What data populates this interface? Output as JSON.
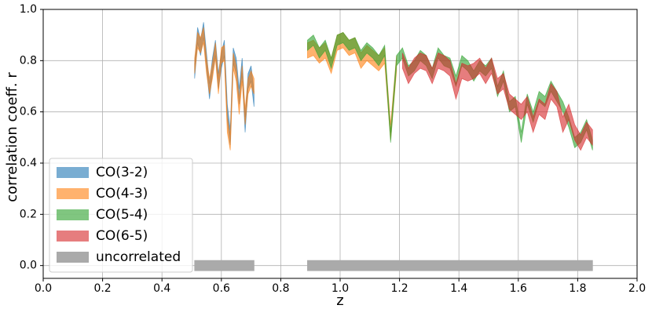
{
  "chart_data": {
    "type": "band",
    "xlabel": "z",
    "ylabel": "correlation coeff. r",
    "xlim": [
      0.0,
      2.0
    ],
    "xticks": [
      {
        "value": 0,
        "label": "0.0"
      },
      0.2,
      0.4,
      0.6,
      0.8,
      {
        "value": 1,
        "label": "1.0"
      },
      1.2,
      1.4,
      1.6,
      1.8,
      {
        "value": 2,
        "label": "2.0"
      }
    ],
    "ylim": [
      -0.05,
      1.0
    ],
    "yticks": [
      {
        "value": 0,
        "label": "0.0"
      },
      0.2,
      0.4,
      0.6,
      0.8,
      {
        "value": 1,
        "label": "1.0"
      }
    ],
    "grid": true,
    "legend": "lower left",
    "series": [
      {
        "name": "CO(3-2)",
        "color": "#1f77b4",
        "opacity": 0.6,
        "x": [
          0.51,
          0.52,
          0.53,
          0.54,
          0.55,
          0.56,
          0.57,
          0.58,
          0.59,
          0.6,
          0.61,
          0.62,
          0.63,
          0.64,
          0.65,
          0.66,
          0.67,
          0.68,
          0.69,
          0.7,
          0.71
        ],
        "lower": [
          0.73,
          0.87,
          0.82,
          0.89,
          0.77,
          0.65,
          0.75,
          0.82,
          0.69,
          0.77,
          0.82,
          0.57,
          0.47,
          0.79,
          0.75,
          0.63,
          0.75,
          0.52,
          0.69,
          0.72,
          0.62
        ],
        "upper": [
          0.79,
          0.93,
          0.88,
          0.95,
          0.83,
          0.71,
          0.81,
          0.88,
          0.75,
          0.83,
          0.88,
          0.63,
          0.53,
          0.85,
          0.81,
          0.69,
          0.81,
          0.58,
          0.75,
          0.78,
          0.68
        ]
      },
      {
        "name": "CO(4-3)",
        "color": "#ff7f0e",
        "opacity": 0.6,
        "x": [
          0.51,
          0.52,
          0.53,
          0.54,
          0.55,
          0.56,
          0.57,
          0.58,
          0.59,
          0.6,
          0.61,
          0.62,
          0.63,
          0.64,
          0.65,
          0.66,
          0.67,
          0.68,
          0.69,
          0.7,
          0.71,
          0.8,
          0.89,
          0.91,
          0.93,
          0.95,
          0.97,
          0.99,
          1.01,
          1.03,
          1.05,
          1.07,
          1.09,
          1.11,
          1.13,
          1.15,
          1.17,
          1.19
        ],
        "lower": [
          0.75,
          0.85,
          0.83,
          0.87,
          0.75,
          0.67,
          0.73,
          0.81,
          0.67,
          0.79,
          0.8,
          0.52,
          0.45,
          0.77,
          0.72,
          0.59,
          0.72,
          0.55,
          0.67,
          0.7,
          0.67,
          null,
          0.81,
          0.82,
          0.79,
          0.81,
          0.75,
          0.84,
          0.85,
          0.82,
          0.83,
          0.77,
          0.8,
          0.78,
          0.76,
          0.79,
          0.49,
          0.76
        ],
        "upper": [
          0.81,
          0.91,
          0.89,
          0.93,
          0.81,
          0.73,
          0.79,
          0.87,
          0.73,
          0.85,
          0.86,
          0.58,
          0.51,
          0.83,
          0.78,
          0.65,
          0.78,
          0.61,
          0.73,
          0.76,
          0.73,
          null,
          0.87,
          0.88,
          0.85,
          0.87,
          0.81,
          0.9,
          0.91,
          0.88,
          0.89,
          0.83,
          0.86,
          0.84,
          0.82,
          0.85,
          0.55,
          0.82
        ]
      },
      {
        "name": "CO(5-4)",
        "color": "#2ca02c",
        "opacity": 0.6,
        "x": [
          0.89,
          0.91,
          0.93,
          0.95,
          0.97,
          0.99,
          1.01,
          1.03,
          1.05,
          1.07,
          1.09,
          1.11,
          1.13,
          1.15,
          1.17,
          1.19,
          1.21,
          1.23,
          1.25,
          1.27,
          1.29,
          1.31,
          1.33,
          1.35,
          1.37,
          1.39,
          1.41,
          1.43,
          1.45,
          1.47,
          1.49,
          1.51,
          1.53,
          1.55,
          1.57,
          1.59,
          1.61,
          1.63,
          1.65,
          1.67,
          1.69,
          1.71,
          1.73,
          1.75,
          1.77,
          1.79,
          1.81,
          1.83,
          1.85
        ],
        "lower": [
          0.84,
          0.86,
          0.81,
          0.84,
          0.77,
          0.86,
          0.87,
          0.84,
          0.85,
          0.8,
          0.83,
          0.81,
          0.78,
          0.82,
          0.48,
          0.78,
          0.81,
          0.74,
          0.76,
          0.8,
          0.78,
          0.73,
          0.81,
          0.78,
          0.77,
          0.7,
          0.78,
          0.76,
          0.72,
          0.76,
          0.74,
          0.77,
          0.66,
          0.72,
          0.6,
          0.62,
          0.48,
          0.63,
          0.56,
          0.64,
          0.62,
          0.68,
          0.64,
          0.6,
          0.54,
          0.46,
          0.48,
          0.53,
          0.45
        ],
        "upper": [
          0.88,
          0.9,
          0.85,
          0.88,
          0.81,
          0.9,
          0.91,
          0.88,
          0.89,
          0.84,
          0.87,
          0.85,
          0.82,
          0.86,
          0.52,
          0.82,
          0.85,
          0.78,
          0.8,
          0.84,
          0.82,
          0.77,
          0.85,
          0.82,
          0.81,
          0.74,
          0.82,
          0.8,
          0.76,
          0.8,
          0.78,
          0.81,
          0.7,
          0.76,
          0.64,
          0.66,
          0.52,
          0.67,
          0.6,
          0.68,
          0.66,
          0.72,
          0.68,
          0.64,
          0.58,
          0.5,
          0.52,
          0.57,
          0.49
        ]
      },
      {
        "name": "CO(6-5)",
        "color": "#d62728",
        "opacity": 0.6,
        "x": [
          1.21,
          1.23,
          1.25,
          1.27,
          1.29,
          1.31,
          1.33,
          1.35,
          1.37,
          1.39,
          1.41,
          1.43,
          1.45,
          1.47,
          1.49,
          1.51,
          1.53,
          1.55,
          1.57,
          1.59,
          1.61,
          1.63,
          1.65,
          1.67,
          1.69,
          1.71,
          1.73,
          1.75,
          1.77,
          1.79,
          1.81,
          1.83,
          1.85
        ],
        "lower": [
          0.77,
          0.71,
          0.75,
          0.77,
          0.76,
          0.71,
          0.77,
          0.76,
          0.74,
          0.65,
          0.73,
          0.72,
          0.73,
          0.75,
          0.71,
          0.75,
          0.67,
          0.69,
          0.61,
          0.59,
          0.57,
          0.6,
          0.52,
          0.59,
          0.57,
          0.65,
          0.62,
          0.52,
          0.57,
          0.49,
          0.45,
          0.5,
          0.47
        ],
        "upper": [
          0.83,
          0.77,
          0.81,
          0.83,
          0.82,
          0.77,
          0.83,
          0.82,
          0.8,
          0.71,
          0.79,
          0.78,
          0.79,
          0.81,
          0.77,
          0.81,
          0.73,
          0.75,
          0.67,
          0.65,
          0.63,
          0.66,
          0.58,
          0.65,
          0.63,
          0.71,
          0.68,
          0.58,
          0.63,
          0.55,
          0.51,
          0.56,
          0.53
        ]
      },
      {
        "name": "uncorrelated",
        "color": "#aaaaaa",
        "opacity": 1,
        "x": [
          0.51,
          0.61,
          0.71,
          0.8,
          0.89,
          1.37,
          1.85
        ],
        "lower": [
          -0.02,
          -0.02,
          -0.02,
          null,
          -0.02,
          -0.02,
          -0.02
        ],
        "upper": [
          0.02,
          0.02,
          0.02,
          null,
          0.02,
          0.02,
          0.02
        ]
      }
    ]
  }
}
